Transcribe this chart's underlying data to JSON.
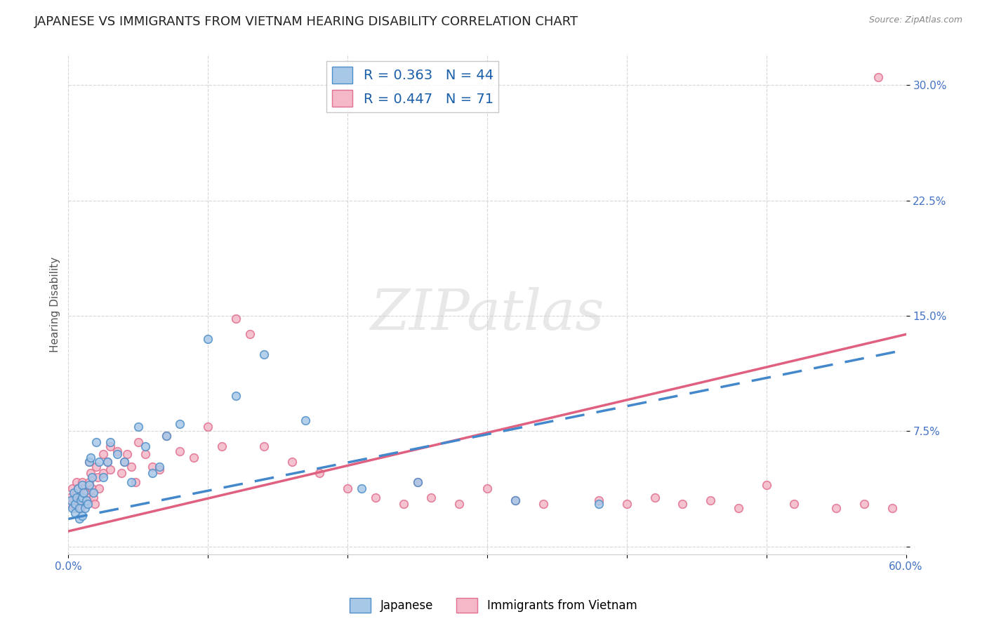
{
  "title": "JAPANESE VS IMMIGRANTS FROM VIETNAM HEARING DISABILITY CORRELATION CHART",
  "source": "Source: ZipAtlas.com",
  "ylabel": "Hearing Disability",
  "xlim": [
    0.0,
    0.6
  ],
  "ylim": [
    -0.005,
    0.32
  ],
  "yticks": [
    0.0,
    0.075,
    0.15,
    0.225,
    0.3
  ],
  "ytick_labels": [
    "",
    "7.5%",
    "15.0%",
    "22.5%",
    "30.0%"
  ],
  "xticks": [
    0.0,
    0.1,
    0.2,
    0.3,
    0.4,
    0.5,
    0.6
  ],
  "xtick_labels": [
    "0.0%",
    "",
    "",
    "",
    "",
    "",
    "60.0%"
  ],
  "legend1_label": "R = 0.363   N = 44",
  "legend2_label": "R = 0.447   N = 71",
  "blue_color": "#a8c8e8",
  "pink_color": "#f4b8c8",
  "blue_edge_color": "#5090c8",
  "pink_edge_color": "#e07090",
  "blue_line_color": "#4488cc",
  "pink_line_color": "#e06080",
  "background_color": "#ffffff",
  "grid_color": "#cccccc",
  "title_fontsize": 13,
  "axis_label_fontsize": 11,
  "tick_fontsize": 11,
  "tick_color": "#4472C4",
  "watermark_text": "ZIPatlas",
  "blue_scatter_x": [
    0.002,
    0.003,
    0.004,
    0.005,
    0.005,
    0.006,
    0.007,
    0.008,
    0.008,
    0.009,
    0.01,
    0.01,
    0.01,
    0.011,
    0.012,
    0.013,
    0.014,
    0.015,
    0.015,
    0.016,
    0.017,
    0.018,
    0.02,
    0.022,
    0.025,
    0.028,
    0.03,
    0.035,
    0.04,
    0.045,
    0.05,
    0.055,
    0.06,
    0.065,
    0.07,
    0.08,
    0.1,
    0.12,
    0.14,
    0.17,
    0.21,
    0.25,
    0.32,
    0.38
  ],
  "blue_scatter_y": [
    0.03,
    0.025,
    0.035,
    0.028,
    0.022,
    0.032,
    0.038,
    0.025,
    0.018,
    0.03,
    0.04,
    0.032,
    0.02,
    0.035,
    0.025,
    0.03,
    0.028,
    0.055,
    0.04,
    0.058,
    0.045,
    0.035,
    0.068,
    0.055,
    0.045,
    0.055,
    0.068,
    0.06,
    0.055,
    0.042,
    0.078,
    0.065,
    0.048,
    0.052,
    0.072,
    0.08,
    0.135,
    0.098,
    0.125,
    0.082,
    0.038,
    0.042,
    0.03,
    0.028
  ],
  "pink_scatter_x": [
    0.001,
    0.002,
    0.003,
    0.004,
    0.005,
    0.006,
    0.006,
    0.007,
    0.008,
    0.009,
    0.01,
    0.01,
    0.011,
    0.012,
    0.013,
    0.014,
    0.015,
    0.015,
    0.016,
    0.017,
    0.018,
    0.019,
    0.02,
    0.021,
    0.022,
    0.025,
    0.025,
    0.028,
    0.03,
    0.03,
    0.035,
    0.038,
    0.04,
    0.042,
    0.045,
    0.048,
    0.05,
    0.055,
    0.06,
    0.065,
    0.07,
    0.08,
    0.09,
    0.1,
    0.11,
    0.12,
    0.13,
    0.14,
    0.16,
    0.18,
    0.2,
    0.22,
    0.24,
    0.25,
    0.26,
    0.28,
    0.3,
    0.32,
    0.34,
    0.38,
    0.4,
    0.42,
    0.44,
    0.46,
    0.48,
    0.5,
    0.52,
    0.55,
    0.57,
    0.59,
    0.58
  ],
  "pink_scatter_y": [
    0.032,
    0.028,
    0.038,
    0.03,
    0.025,
    0.042,
    0.035,
    0.038,
    0.03,
    0.025,
    0.042,
    0.032,
    0.038,
    0.028,
    0.035,
    0.032,
    0.055,
    0.042,
    0.048,
    0.038,
    0.032,
    0.028,
    0.052,
    0.045,
    0.038,
    0.06,
    0.048,
    0.055,
    0.065,
    0.05,
    0.062,
    0.048,
    0.055,
    0.06,
    0.052,
    0.042,
    0.068,
    0.06,
    0.052,
    0.05,
    0.072,
    0.062,
    0.058,
    0.078,
    0.065,
    0.148,
    0.138,
    0.065,
    0.055,
    0.048,
    0.038,
    0.032,
    0.028,
    0.042,
    0.032,
    0.028,
    0.038,
    0.03,
    0.028,
    0.03,
    0.028,
    0.032,
    0.028,
    0.03,
    0.025,
    0.04,
    0.028,
    0.025,
    0.028,
    0.025,
    0.305
  ],
  "blue_line_x0": 0.0,
  "blue_line_y0": 0.018,
  "blue_line_x1": 0.6,
  "blue_line_y1": 0.128,
  "pink_line_x0": 0.0,
  "pink_line_y0": 0.01,
  "pink_line_x1": 0.6,
  "pink_line_y1": 0.138
}
